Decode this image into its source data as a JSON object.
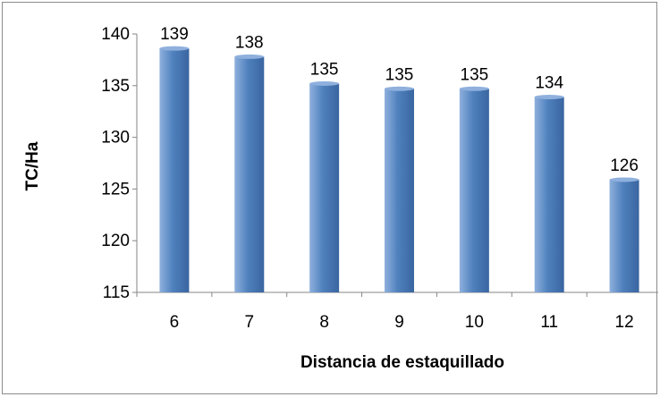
{
  "chart_data": {
    "type": "bar",
    "categories": [
      "6",
      "7",
      "8",
      "9",
      "10",
      "11",
      "12"
    ],
    "values": [
      138.6,
      137.8,
      135.2,
      134.7,
      134.7,
      133.9,
      125.9
    ],
    "data_labels": [
      "139",
      "138",
      "135",
      "135",
      "135",
      "134",
      "126"
    ],
    "xlabel": "Distancia de estaquillado",
    "ylabel": "TC/Ha",
    "ylim": [
      115,
      140
    ],
    "yticks": [
      115,
      120,
      125,
      130,
      135,
      140
    ],
    "grid": false,
    "legend": "none",
    "colors": {
      "bar_light": "#8fb0dd",
      "bar_main": "#4f81bd",
      "bar_dark": "#3a65a0",
      "axis": "#868686"
    }
  }
}
